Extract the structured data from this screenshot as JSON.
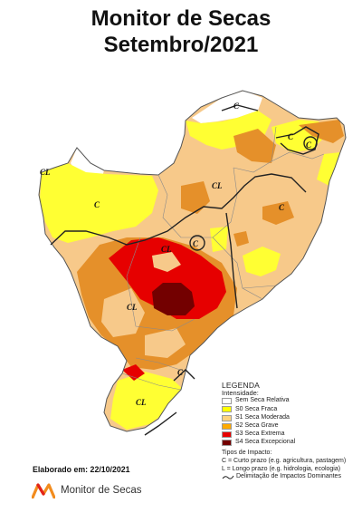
{
  "title": {
    "line1": "Monitor de Secas",
    "line2": "Setembro/2021"
  },
  "map": {
    "impact_labels": [
      "C",
      "C",
      "CL",
      "C",
      "C",
      "CL",
      "C",
      "C",
      "CL",
      "C",
      "CL",
      "CL"
    ]
  },
  "legend": {
    "title": "LEGENDA",
    "subtitle": "Intensidade:",
    "items": [
      {
        "label": "Sem Seca Relativa",
        "color": "#ffffff"
      },
      {
        "label": "S0 Seca Fraca",
        "color": "#ffff00"
      },
      {
        "label": "S1 Seca Moderada",
        "color": "#fcd37f"
      },
      {
        "label": "S2 Seca Grave",
        "color": "#ffaa00"
      },
      {
        "label": "S3 Seca Extrema",
        "color": "#e60000"
      },
      {
        "label": "S4 Seca Excepcional",
        "color": "#730000"
      }
    ],
    "impact_title": "Tipos de Impacto:",
    "impact_items": [
      "C = Curto prazo (e.g. agricultura, pastagem)",
      "L = Longo prazo (e.g. hidrologia, ecologia)"
    ],
    "boundary_label": "Delimitação de Impactos Dominantes"
  },
  "footer": {
    "elaborado": "Elaborado em: 22/10/2021",
    "brand": "Monitor de Secas"
  },
  "colors": {
    "s0": "#ffff00",
    "s1": "#fcd37f",
    "s2": "#ffaa00",
    "s3": "#e60000",
    "s4": "#730000",
    "s2_map": "#e08a1e",
    "s1_map": "#f5c27a",
    "border": "#3a3a3a"
  }
}
